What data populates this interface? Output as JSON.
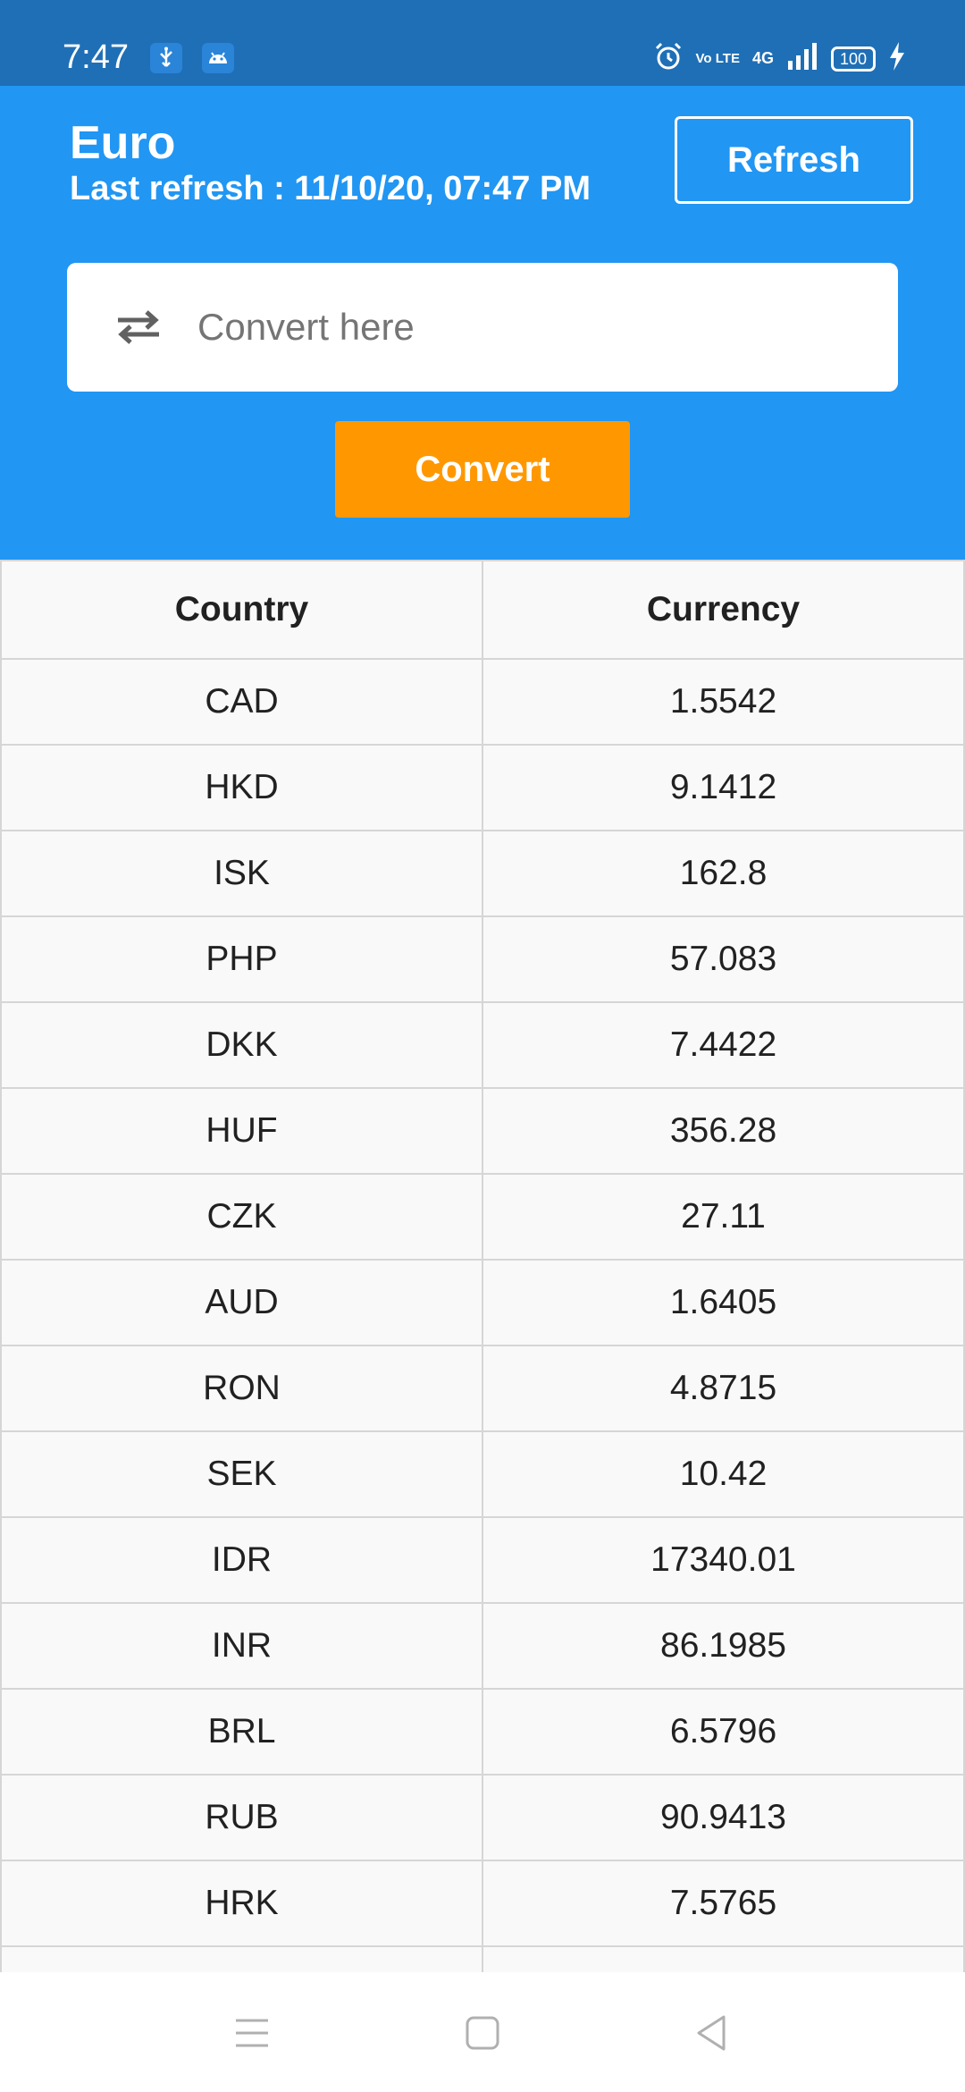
{
  "status_bar": {
    "time": "7:47",
    "volte": "Vo LTE",
    "network": "4G",
    "battery": "100"
  },
  "header": {
    "title": "Euro",
    "last_refresh": "Last refresh : 11/10/20, 07:47 PM",
    "refresh_label": "Refresh"
  },
  "converter": {
    "placeholder": "Convert here",
    "convert_label": "Convert"
  },
  "table": {
    "headers": [
      "Country",
      "Currency"
    ],
    "rows": [
      [
        "CAD",
        "1.5542"
      ],
      [
        "HKD",
        "9.1412"
      ],
      [
        "ISK",
        "162.8"
      ],
      [
        "PHP",
        "57.083"
      ],
      [
        "DKK",
        "7.4422"
      ],
      [
        "HUF",
        "356.28"
      ],
      [
        "CZK",
        "27.11"
      ],
      [
        "AUD",
        "1.6405"
      ],
      [
        "RON",
        "4.8715"
      ],
      [
        "SEK",
        "10.42"
      ],
      [
        "IDR",
        "17340.01"
      ],
      [
        "INR",
        "86.1985"
      ],
      [
        "BRL",
        "6.5796"
      ],
      [
        "RUB",
        "90.9413"
      ],
      [
        "HRK",
        "7.5765"
      ],
      [
        "",
        ""
      ]
    ]
  },
  "colors": {
    "status_bar": "#1f6fb6",
    "header": "#2196f3",
    "convert_button": "#ff9800"
  },
  "icons": {
    "usb": "usb-icon",
    "android": "android-icon",
    "alarm": "alarm-icon",
    "signal": "signal-icon",
    "charging": "charging-icon",
    "swap": "swap-icon",
    "menu": "menu-icon",
    "home": "home-icon",
    "back": "back-icon"
  }
}
